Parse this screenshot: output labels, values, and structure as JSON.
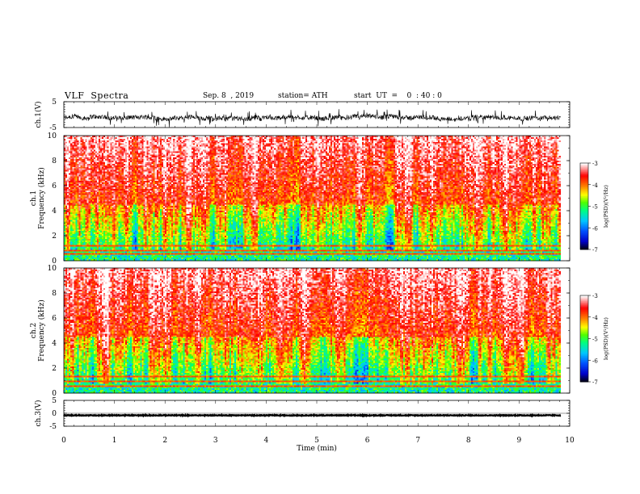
{
  "header": {
    "title": "VLF  Spectra",
    "date": "Sep. 8  , 2019",
    "station": "station= ATH",
    "start": "start  UT  =    0  : 40 : 0"
  },
  "chart_data": [
    {
      "type": "line",
      "ylabel": "ch.1(V)",
      "ylim": [
        -5,
        5
      ],
      "yticks": [
        "5",
        "-5"
      ],
      "xlim": [
        0,
        10
      ],
      "description_values": {
        "baseline": -1.3,
        "spread": 1.5
      }
    },
    {
      "type": "heatmap",
      "ylabel": "ch.1\nFrequency  (kHz)",
      "ylim": [
        0,
        10
      ],
      "yticks": [
        "0",
        "2",
        "4",
        "6",
        "8",
        "10"
      ],
      "xlim": [
        0,
        10
      ],
      "colorbar": {
        "label": "log(PSD)(V²/Hz)",
        "range": [
          -7,
          -3
        ],
        "ticks": [
          "-3",
          "-4",
          "-5",
          "-6",
          "-7"
        ]
      }
    },
    {
      "type": "heatmap",
      "ylabel": "ch.2\nFrequency  (kHz)",
      "ylim": [
        0,
        10
      ],
      "yticks": [
        "0",
        "2",
        "4",
        "6",
        "8",
        "10"
      ],
      "xlim": [
        0,
        10
      ],
      "colorbar": {
        "label": "log(PSD)(V²/Hz)",
        "range": [
          -7,
          -3
        ],
        "ticks": [
          "-3",
          "-4",
          "-5",
          "-6",
          "-7"
        ]
      }
    },
    {
      "type": "line",
      "ylabel": "ch.3(V)",
      "ylim": [
        -5,
        5
      ],
      "yticks": [
        "5",
        "0",
        "-5"
      ],
      "xlim": [
        0,
        10
      ],
      "description_values": {
        "baseline": -0.8,
        "spread": 0.3
      }
    }
  ],
  "xaxis": {
    "label": "Time  (min)",
    "ticks": [
      "0",
      "1",
      "2",
      "3",
      "4",
      "5",
      "6",
      "7",
      "8",
      "9",
      "10"
    ],
    "data_end": 9.82
  },
  "colors": {
    "colormap": [
      "#000000",
      "#0000c8",
      "#0050ff",
      "#00c8ff",
      "#00ff80",
      "#50ff00",
      "#ffff00",
      "#ff8000",
      "#ff0000",
      "#ffffff"
    ]
  }
}
